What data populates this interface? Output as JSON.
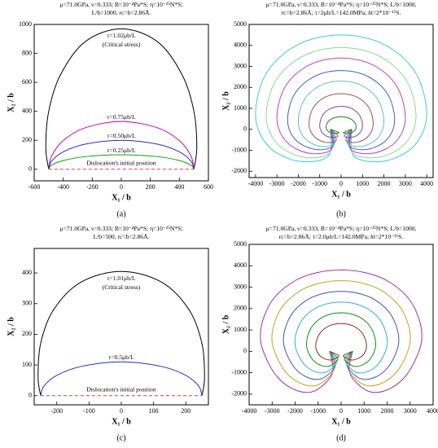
{
  "chart_data": [
    {
      "type": "line",
      "title": [
        "μ=71.0GPa, ν=0.333; B=10⁻⁴Pa*S; η=10⁻²⁵N*S;",
        "L/b=1000, rc=b=2.86Å."
      ],
      "xlabel": "X₁ / b",
      "ylabel": "X₂ / b",
      "caption": "(a)",
      "annotations": [
        "(Critical stress)"
      ],
      "xlim": [
        -600,
        600
      ],
      "ylim": [
        -80,
        1000
      ],
      "xticks": [
        -600,
        -400,
        -200,
        0,
        200,
        400,
        600
      ],
      "yticks": [
        0,
        200,
        400,
        600,
        800,
        1000
      ],
      "series": [
        {
          "name": "τ=1.02μb/L",
          "color": "#000000",
          "x": [
            -500,
            -520,
            -500,
            -420,
            -250,
            0,
            250,
            420,
            500,
            520,
            500
          ],
          "values": [
            0,
            150,
            400,
            650,
            880,
            970,
            880,
            650,
            400,
            150,
            0
          ]
        },
        {
          "name": "τ=0.75μb/L",
          "color": "#c000c0",
          "x": [
            -500,
            -480,
            -400,
            -250,
            0,
            250,
            400,
            480,
            500
          ],
          "values": [
            0,
            92,
            198,
            286,
            330,
            286,
            198,
            92,
            0
          ]
        },
        {
          "name": "τ=0.50μb/L",
          "color": "#2030c0",
          "x": [
            -500,
            -480,
            -400,
            -250,
            0,
            250,
            400,
            480,
            500
          ],
          "values": [
            0,
            56,
            120,
            173,
            200,
            173,
            120,
            56,
            0
          ]
        },
        {
          "name": "τ=0.25μb/L",
          "color": "#10a010",
          "x": [
            -500,
            -480,
            -400,
            -250,
            0,
            250,
            400,
            480,
            500
          ],
          "values": [
            0,
            28,
            60,
            87,
            100,
            87,
            60,
            28,
            0
          ]
        },
        {
          "name": "Dislocation's initial position",
          "color": "#d04040",
          "dash": true,
          "x": [
            -500,
            500
          ],
          "values": [
            0,
            0
          ]
        }
      ]
    },
    {
      "type": "line",
      "title": [
        "μ=71.0GPa, ν=0.333; B=10⁻⁴Pa*S; η=10⁻²⁵N*S; L/b=1000,",
        "rc=b=2.86Å; τ=2μb/L=142.0MPa; δt=2*10⁻¹⁵S."
      ],
      "xlabel": "X₁ / b",
      "ylabel": "X₂ / b",
      "caption": "(b)",
      "xlim": [
        -4300,
        4300
      ],
      "ylim": [
        -2300,
        5000
      ],
      "xticks": [
        -4000,
        -3000,
        -2000,
        -1000,
        0,
        1000,
        2000,
        3000,
        4000
      ],
      "yticks": [
        -2000,
        -1000,
        0,
        1000,
        2000,
        3000,
        4000,
        5000
      ],
      "series": [
        {
          "color": "#40c8e0",
          "x": [
            -500,
            -600,
            -2000,
            -3400,
            -4000,
            -3480,
            -2000,
            0,
            2000,
            3480,
            4000,
            3400,
            2000,
            600,
            500
          ],
          "values": [
            0,
            -1280,
            -1520,
            -800,
            675,
            2700,
            4050,
            4500,
            4050,
            2700,
            675,
            -800,
            -1520,
            -1280,
            0
          ]
        },
        {
          "color": "#90d890",
          "x": [
            -500,
            -525,
            -1750,
            -2975,
            -3500,
            -3045,
            -1750,
            0,
            1750,
            3045,
            3500,
            2975,
            1750,
            525,
            500
          ],
          "values": [
            0,
            -1120,
            -1330,
            -700,
            585,
            2340,
            3510,
            3900,
            3510,
            2340,
            585,
            -700,
            -1330,
            -1120,
            0
          ]
        },
        {
          "color": "#c040c0",
          "x": [
            -500,
            -450,
            -1500,
            -2550,
            -3000,
            -2610,
            -1500,
            0,
            1500,
            2610,
            3000,
            2550,
            1500,
            450,
            500
          ],
          "values": [
            0,
            -960,
            -1140,
            -600,
            510,
            2040,
            3060,
            3400,
            3060,
            2040,
            510,
            -600,
            -1140,
            -960,
            0
          ]
        },
        {
          "color": "#4060c0",
          "x": [
            -500,
            -375,
            -1250,
            -2125,
            -2500,
            -2175,
            -1250,
            0,
            1250,
            2175,
            2500,
            2125,
            1250,
            375,
            500
          ],
          "values": [
            0,
            -800,
            -950,
            -500,
            420,
            1680,
            2520,
            2800,
            2520,
            1680,
            420,
            -500,
            -950,
            -800,
            0
          ]
        },
        {
          "color": "#60c0c0",
          "x": [
            -500,
            -300,
            -1000,
            -1700,
            -2000,
            -1740,
            -1000,
            0,
            1000,
            1740,
            2000,
            1700,
            1000,
            300,
            500
          ],
          "values": [
            0,
            -680,
            -808,
            -425,
            345,
            1380,
            2070,
            2300,
            2070,
            1380,
            345,
            -425,
            -808,
            -680,
            0
          ]
        },
        {
          "color": "#a05050",
          "x": [
            -500,
            -225,
            -750,
            -1275,
            -1500,
            -1305,
            -750,
            0,
            750,
            1305,
            1500,
            1275,
            750,
            225,
            500
          ],
          "values": [
            0,
            -520,
            -618,
            -325,
            255,
            1020,
            1530,
            1700,
            1530,
            1020,
            255,
            -325,
            -618,
            -520,
            0
          ]
        },
        {
          "color": "#8040a0",
          "x": [
            -500,
            -150,
            -500,
            -850,
            -1000,
            -870,
            -500,
            0,
            500,
            870,
            1000,
            850,
            500,
            150,
            500
          ],
          "values": [
            0,
            -320,
            -380,
            -200,
            165,
            660,
            990,
            1100,
            990,
            660,
            165,
            -200,
            -380,
            -320,
            0
          ]
        },
        {
          "color": "#208020",
          "x": [
            -500,
            -105,
            -350,
            -595,
            -700,
            -609,
            -350,
            0,
            350,
            609,
            700,
            595,
            350,
            105,
            500
          ],
          "values": [
            0,
            -160,
            -190,
            -100,
            90,
            360,
            540,
            600,
            540,
            360,
            90,
            -100,
            -190,
            -160,
            0
          ]
        }
      ]
    },
    {
      "type": "line",
      "title": [
        "μ=71.0GPa, ν=0.333; B=10⁻⁴Pa*S; η=10⁻²⁵N*S;",
        "L/b=500, rc=b=2.86Å."
      ],
      "xlabel": "X₁ / b",
      "ylabel": "X₂ / b",
      "caption": "(c)",
      "annotations": [
        "(Critical stress)"
      ],
      "xlim": [
        -270,
        270
      ],
      "ylim": [
        -30,
        480
      ],
      "xticks": [
        -200,
        -100,
        0,
        100,
        200
      ],
      "yticks": [
        0,
        100,
        200,
        300,
        400
      ],
      "series": [
        {
          "name": "τ=1.01μb/L",
          "color": "#000000",
          "x": [
            -250,
            -258,
            -250,
            -210,
            -125,
            0,
            125,
            210,
            250,
            258,
            250
          ],
          "values": [
            0,
            60,
            170,
            280,
            370,
            405,
            370,
            280,
            170,
            60,
            0
          ]
        },
        {
          "name": "τ=0.5μb/L",
          "color": "#2030c0",
          "x": [
            -250,
            -240,
            -200,
            -125,
            0,
            125,
            200,
            240,
            250
          ],
          "values": [
            0,
            31,
            66,
            95,
            110,
            95,
            66,
            31,
            0
          ]
        },
        {
          "name": "Dislocation's initial position",
          "color": "#d04040",
          "dash": true,
          "x": [
            -250,
            250
          ],
          "values": [
            0,
            0
          ]
        }
      ]
    },
    {
      "type": "line",
      "title": [
        "μ=71.0GPa, ν=0.333; B=10⁻⁴Pa*S; η=10⁻²⁵N*S; L/b=1000,",
        "rc=b=2.86Å; τ=2.0μb/L=142.0MPa; δt=2*10⁻¹⁵S."
      ],
      "xlabel": "X₁ / b",
      "ylabel": "X₂ / b",
      "caption": "(d)",
      "xlim": [
        -4000,
        4000
      ],
      "ylim": [
        -2500,
        5000
      ],
      "xticks": [
        -4000,
        -3000,
        -2000,
        -1000,
        0,
        1000,
        2000,
        3000,
        4000
      ],
      "yticks": [
        -2000,
        -1000,
        0,
        1000,
        2000,
        3000,
        4000,
        5000
      ],
      "series": [
        {
          "color": "#a0309a",
          "x": [
            -500,
            -350,
            -700,
            -1295,
            -1995,
            -2695,
            -3185,
            -3500,
            -3395,
            -2905,
            -1995,
            -1015,
            0,
            1015,
            1995,
            2905,
            3395,
            3500,
            3185,
            2695,
            1995,
            1295,
            700,
            350,
            500
          ],
          "values": [
            0,
            -893,
            -1501,
            -1900,
            -1805,
            -1292,
            -494,
            494,
            1482,
            2508,
            3306,
            3686,
            3800,
            3686,
            3306,
            2508,
            1482,
            494,
            -494,
            -1292,
            -1805,
            -1900,
            -1501,
            -893,
            0
          ]
        },
        {
          "color": "#c8a020",
          "x": [
            -500,
            -300,
            -600,
            -1110,
            -1710,
            -2310,
            -2730,
            -3000,
            -2910,
            -2490,
            -1710,
            -870,
            0,
            870,
            1710,
            2490,
            2910,
            3000,
            2730,
            2310,
            1710,
            1110,
            600,
            300,
            500
          ],
          "values": [
            0,
            -752,
            -1264,
            -1600,
            -1520,
            -1088,
            -416,
            429,
            1287,
            2178,
            2871,
            3201,
            3300,
            3201,
            2871,
            2178,
            1287,
            429,
            -416,
            -1088,
            -1520,
            -1600,
            -1264,
            -752,
            0
          ]
        },
        {
          "color": "#4050c0",
          "x": [
            -500,
            -250,
            -500,
            -925,
            -1425,
            -1925,
            -2275,
            -2500,
            -2425,
            -2075,
            -1425,
            -725,
            0,
            725,
            1425,
            2075,
            2425,
            2500,
            2275,
            1925,
            1425,
            925,
            500,
            250,
            500
          ],
          "values": [
            0,
            -611,
            -1027,
            -1300,
            -1235,
            -884,
            -338,
            364,
            1092,
            1848,
            2436,
            2716,
            2800,
            2716,
            2436,
            1848,
            1092,
            364,
            -338,
            -884,
            -1235,
            -1300,
            -1027,
            -611,
            0
          ]
        },
        {
          "color": "#30b0d0",
          "x": [
            -500,
            -200,
            -400,
            -740,
            -1140,
            -1540,
            -1820,
            -2000,
            -1940,
            -1660,
            -1140,
            -580,
            0,
            580,
            1140,
            1660,
            1940,
            2000,
            1820,
            1540,
            1140,
            740,
            400,
            200,
            500
          ],
          "values": [
            0,
            -470,
            -790,
            -1000,
            -950,
            -680,
            -260,
            299,
            897,
            1518,
            2001,
            2231,
            2300,
            2231,
            2001,
            1518,
            897,
            299,
            -260,
            -680,
            -950,
            -1000,
            -790,
            -470,
            0
          ]
        },
        {
          "color": "#109010",
          "x": [
            -500,
            -150,
            -300,
            -555,
            -855,
            -1155,
            -1365,
            -1500,
            -1455,
            -1245,
            -855,
            -435,
            0,
            435,
            855,
            1245,
            1455,
            1500,
            1365,
            1155,
            855,
            555,
            300,
            150,
            500
          ],
          "values": [
            0,
            -329,
            -553,
            -700,
            -665,
            -476,
            -182,
            234,
            702,
            1188,
            1566,
            1746,
            1800,
            1746,
            1566,
            1188,
            702,
            234,
            -182,
            -476,
            -665,
            -700,
            -553,
            -329,
            0
          ]
        },
        {
          "color": "#803020",
          "x": [
            -500,
            -110,
            -220,
            -407,
            -627,
            -847,
            -1001,
            -1100,
            -1067,
            -913,
            -627,
            -319,
            0,
            319,
            627,
            913,
            1067,
            1100,
            1001,
            847,
            627,
            407,
            220,
            110,
            500
          ],
          "values": [
            0,
            -188,
            -316,
            -400,
            -380,
            -272,
            -104,
            169,
            507,
            858,
            1131,
            1261,
            1300,
            1261,
            1131,
            858,
            507,
            169,
            -104,
            -272,
            -380,
            -400,
            -316,
            -188,
            0
          ]
        }
      ]
    }
  ]
}
